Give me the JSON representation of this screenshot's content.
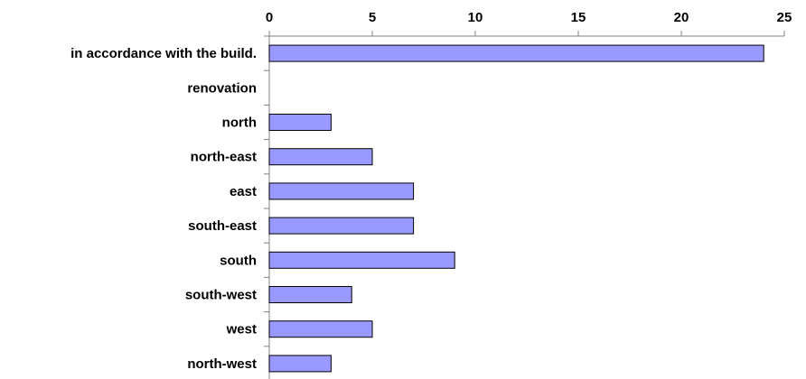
{
  "chart_data": {
    "type": "bar",
    "orientation": "horizontal",
    "title": "",
    "xlabel": "",
    "ylabel": "",
    "categories": [
      "in accordance with the build.",
      "renovation",
      "north",
      "north-east",
      "east",
      "south-east",
      "south",
      "south-west",
      "west",
      "north-west"
    ],
    "values": [
      24,
      0,
      3,
      5,
      7,
      7,
      9,
      4,
      5,
      3
    ],
    "xlim": [
      0,
      25
    ],
    "x_ticks": [
      0,
      5,
      10,
      15,
      20,
      25
    ],
    "x_axis_position": "top",
    "grid": false,
    "legend": "none",
    "bar_color": "#9999ff",
    "bar_edge_color": "#000000",
    "axis_color": "#808080"
  }
}
